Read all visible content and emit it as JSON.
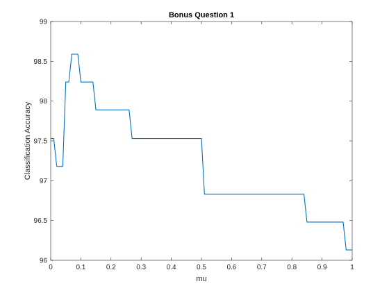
{
  "chart_data": {
    "type": "line",
    "title": "Bonus Question 1",
    "xlabel": "mu",
    "ylabel": "Classification Accuracy",
    "xlim": [
      0,
      1
    ],
    "ylim": [
      96,
      99
    ],
    "xticks": [
      0,
      0.1,
      0.2,
      0.3,
      0.4,
      0.5,
      0.6,
      0.7,
      0.8,
      0.9,
      1
    ],
    "xtick_labels": [
      "0",
      "0.1",
      "0.2",
      "0.3",
      "0.4",
      "0.5",
      "0.6",
      "0.7",
      "0.8",
      "0.9",
      "1"
    ],
    "yticks": [
      96,
      96.5,
      97,
      97.5,
      98,
      98.5,
      99
    ],
    "ytick_labels": [
      "96",
      "96.5",
      "97",
      "97.5",
      "98",
      "98.5",
      "99"
    ],
    "grid": false,
    "line_color": "#0072bd",
    "series": [
      {
        "x": [
          0,
          0.01,
          0.02,
          0.03,
          0.04,
          0.05,
          0.06,
          0.07,
          0.08,
          0.09,
          0.1,
          0.11,
          0.12,
          0.13,
          0.14,
          0.15,
          0.16,
          0.26,
          0.27,
          0.28,
          0.49,
          0.5,
          0.51,
          0.52,
          0.83,
          0.84,
          0.85,
          0.96,
          0.97,
          0.98,
          1.0
        ],
        "values": [
          97.53,
          97.53,
          97.18,
          97.18,
          97.18,
          98.24,
          98.24,
          98.59,
          98.59,
          98.59,
          98.24,
          98.24,
          98.24,
          98.24,
          98.24,
          97.89,
          97.89,
          97.89,
          97.53,
          97.53,
          97.53,
          97.53,
          96.83,
          96.83,
          96.83,
          96.83,
          96.48,
          96.48,
          96.48,
          96.13,
          96.13
        ]
      }
    ]
  }
}
